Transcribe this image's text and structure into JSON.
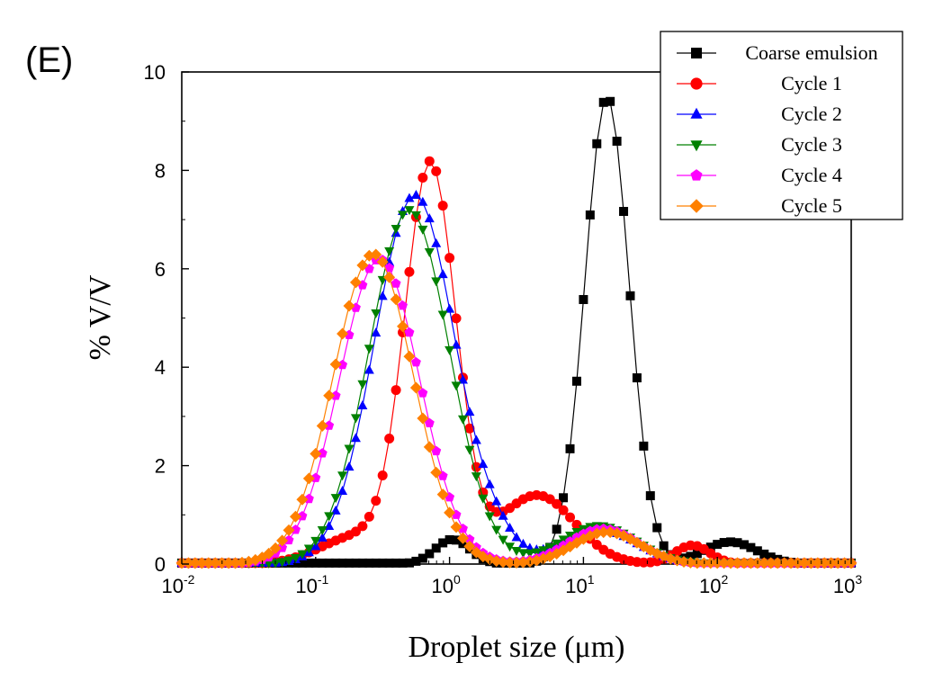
{
  "panel_label": "(E)",
  "chart_data": {
    "type": "line",
    "title": "",
    "xlabel": "Droplet size (μm)",
    "ylabel": "% V/V",
    "xscale": "log",
    "xlim": [
      0.01,
      1000
    ],
    "ylim": [
      0,
      10
    ],
    "x_ticks": [
      {
        "value": 0.01,
        "base": "10",
        "exp": "-2"
      },
      {
        "value": 0.1,
        "base": "10",
        "exp": "-1"
      },
      {
        "value": 1,
        "base": "10",
        "exp": "0"
      },
      {
        "value": 10,
        "base": "10",
        "exp": "1"
      },
      {
        "value": 100,
        "base": "10",
        "exp": "2"
      },
      {
        "value": 1000,
        "base": "10",
        "exp": "3"
      }
    ],
    "y_ticks": [
      0,
      2,
      4,
      6,
      8,
      10
    ],
    "legend_position": "top-right",
    "series": [
      {
        "name": "Coarse emulsion",
        "color": "#000000",
        "marker": "square",
        "components": [
          {
            "peak": 0.5,
            "center": 1.05,
            "sigma": 0.13
          },
          {
            "peak": 9.5,
            "center": 15,
            "sigma": 0.165
          },
          {
            "peak": 0.45,
            "center": 125,
            "sigma": 0.2
          }
        ],
        "xrange": [
          0.01,
          1000
        ]
      },
      {
        "name": "Cycle 1",
        "color": "#ff0000",
        "marker": "circle",
        "components": [
          {
            "peak": 8.1,
            "center": 0.72,
            "sigma": 0.19
          },
          {
            "peak": 0.55,
            "center": 0.2,
            "sigma": 0.27
          },
          {
            "peak": 1.4,
            "center": 4.5,
            "sigma": 0.28
          },
          {
            "peak": 0.38,
            "center": 65,
            "sigma": 0.13
          }
        ],
        "xrange": [
          0.01,
          1000
        ]
      },
      {
        "name": "Cycle 2",
        "color": "#0000ff",
        "marker": "triangle-up",
        "components": [
          {
            "peak": 7.5,
            "center": 0.55,
            "sigma": 0.3
          },
          {
            "peak": 0.3,
            "center": 2.2,
            "sigma": 0.15
          },
          {
            "peak": 0.7,
            "center": 13,
            "sigma": 0.28
          }
        ],
        "xrange": [
          0.01,
          1000
        ]
      },
      {
        "name": "Cycle 3",
        "color": "#008000",
        "marker": "triangle-down",
        "components": [
          {
            "peak": 7.2,
            "center": 0.5,
            "sigma": 0.3
          },
          {
            "peak": 0.78,
            "center": 13,
            "sigma": 0.28
          }
        ],
        "xrange": [
          0.01,
          1000
        ]
      },
      {
        "name": "Cycle 4",
        "color": "#ff00ff",
        "marker": "pentagon",
        "components": [
          {
            "peak": 6.2,
            "center": 0.3,
            "sigma": 0.3
          },
          {
            "peak": 0.72,
            "center": 14,
            "sigma": 0.26
          }
        ],
        "xrange": [
          0.01,
          1000
        ]
      },
      {
        "name": "Cycle 5",
        "color": "#ff8000",
        "marker": "diamond",
        "components": [
          {
            "peak": 6.3,
            "center": 0.27,
            "sigma": 0.3
          },
          {
            "peak": 0.65,
            "center": 15,
            "sigma": 0.25
          }
        ],
        "xrange": [
          0.01,
          1000
        ]
      }
    ]
  }
}
